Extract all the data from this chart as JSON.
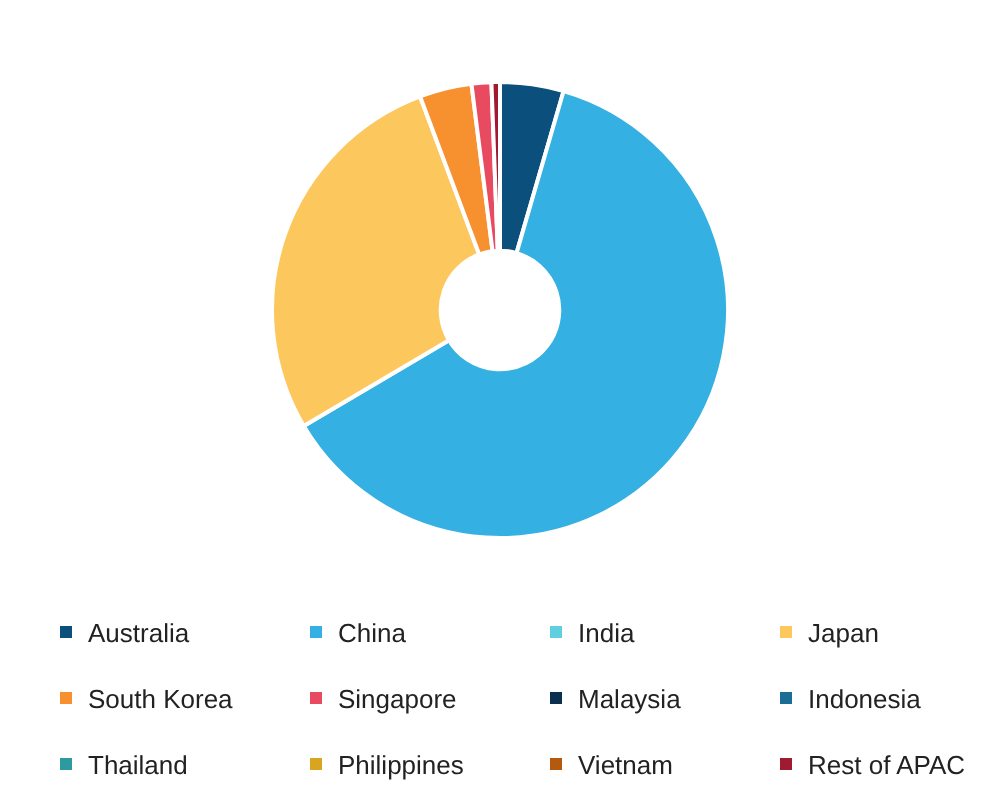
{
  "chart_data": {
    "type": "donut",
    "categories": [
      "Australia",
      "China",
      "India",
      "Japan",
      "South Korea",
      "Singapore",
      "Malaysia",
      "Indonesia",
      "Thailand",
      "Philippines",
      "Vietnam",
      "Rest of APAC"
    ],
    "values": [
      4.5,
      62,
      0,
      27.8,
      3.7,
      1.4,
      0,
      0,
      0,
      0,
      0,
      0.6
    ],
    "colors": [
      "#0b4f7c",
      "#35b0e2",
      "#5fd0e0",
      "#fcc85e",
      "#f7902f",
      "#e84a5f",
      "#0b2f4f",
      "#1a6e96",
      "#2d9aa0",
      "#d9a521",
      "#b5590f",
      "#9e1b32"
    ],
    "legend": "bottom"
  }
}
